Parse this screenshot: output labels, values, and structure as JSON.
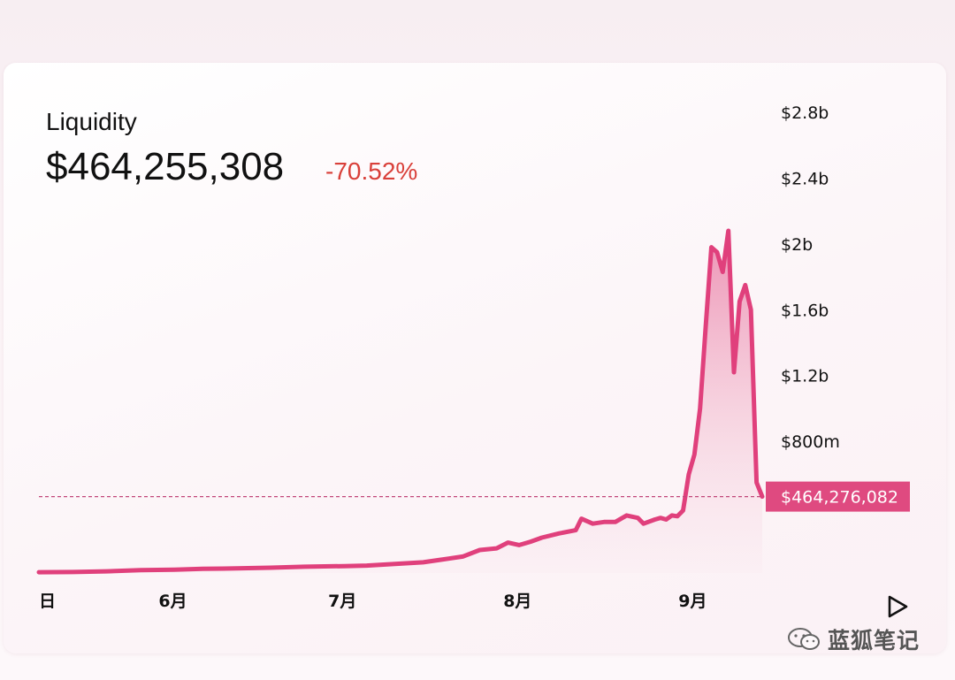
{
  "header": {
    "partial_text": ""
  },
  "card": {
    "title": "Liquidity",
    "value": "$464,255,308",
    "change": "-70.52%"
  },
  "current_marker": {
    "label": "$464,276,082",
    "value": 464276082
  },
  "watermark": {
    "text": "蓝狐笔记",
    "icon": "wechat-icon"
  },
  "controls": {
    "play_icon": "play-icon"
  },
  "colors": {
    "line": "#e0407c",
    "fill": "#e8789f",
    "change": "#d9403a",
    "label_bg": "#df4a80"
  },
  "chart_data": {
    "type": "area",
    "title": "Liquidity",
    "xlabel": "",
    "ylabel": "",
    "ylim": [
      0,
      2800000000
    ],
    "y_ticks": [
      {
        "label": "$2.8b",
        "value": 2800000000
      },
      {
        "label": "$2.4b",
        "value": 2400000000
      },
      {
        "label": "$2b",
        "value": 2000000000
      },
      {
        "label": "$1.6b",
        "value": 1600000000
      },
      {
        "label": "$1.2b",
        "value": 1200000000
      },
      {
        "label": "$800m",
        "value": 800000000
      }
    ],
    "x_ticks": [
      {
        "label": "日",
        "x": "2023-05-08"
      },
      {
        "label": "6月",
        "x": "2023-06-01"
      },
      {
        "label": "7月",
        "x": "2023-07-01"
      },
      {
        "label": "8月",
        "x": "2023-08-01"
      },
      {
        "label": "9月",
        "x": "2023-09-01"
      }
    ],
    "grid": false,
    "series": [
      {
        "values": [
          [
            "2023-05-08",
            5000000
          ],
          [
            "2023-05-14",
            6000000
          ],
          [
            "2023-05-20",
            10000000
          ],
          [
            "2023-05-26",
            18000000
          ],
          [
            "2023-06-01",
            20000000
          ],
          [
            "2023-06-06",
            25000000
          ],
          [
            "2023-06-12",
            28000000
          ],
          [
            "2023-06-18",
            32000000
          ],
          [
            "2023-06-24",
            38000000
          ],
          [
            "2023-07-01",
            42000000
          ],
          [
            "2023-07-05",
            45000000
          ],
          [
            "2023-07-10",
            55000000
          ],
          [
            "2023-07-15",
            65000000
          ],
          [
            "2023-07-18",
            80000000
          ],
          [
            "2023-07-22",
            100000000
          ],
          [
            "2023-07-25",
            140000000
          ],
          [
            "2023-07-28",
            150000000
          ],
          [
            "2023-07-30",
            185000000
          ],
          [
            "2023-08-01",
            170000000
          ],
          [
            "2023-08-03",
            190000000
          ],
          [
            "2023-08-05",
            215000000
          ],
          [
            "2023-08-08",
            240000000
          ],
          [
            "2023-08-11",
            260000000
          ],
          [
            "2023-08-12",
            330000000
          ],
          [
            "2023-08-14",
            300000000
          ],
          [
            "2023-08-16",
            310000000
          ],
          [
            "2023-08-18",
            310000000
          ],
          [
            "2023-08-20",
            350000000
          ],
          [
            "2023-08-22",
            335000000
          ],
          [
            "2023-08-23",
            300000000
          ],
          [
            "2023-08-25",
            325000000
          ],
          [
            "2023-08-26",
            335000000
          ],
          [
            "2023-08-27",
            325000000
          ],
          [
            "2023-08-28",
            350000000
          ],
          [
            "2023-08-29",
            345000000
          ],
          [
            "2023-08-30",
            380000000
          ],
          [
            "2023-08-31",
            600000000
          ],
          [
            "2023-09-01",
            720000000
          ],
          [
            "2023-09-02",
            1000000000
          ],
          [
            "2023-09-03",
            1500000000
          ],
          [
            "2023-09-04",
            1980000000
          ],
          [
            "2023-09-05",
            1950000000
          ],
          [
            "2023-09-06",
            1830000000
          ],
          [
            "2023-09-07",
            2080000000
          ],
          [
            "2023-09-08",
            1220000000
          ],
          [
            "2023-09-09",
            1650000000
          ],
          [
            "2023-09-10",
            1750000000
          ],
          [
            "2023-09-11",
            1600000000
          ],
          [
            "2023-09-12",
            550000000
          ],
          [
            "2023-09-13",
            464276082
          ]
        ]
      }
    ]
  }
}
